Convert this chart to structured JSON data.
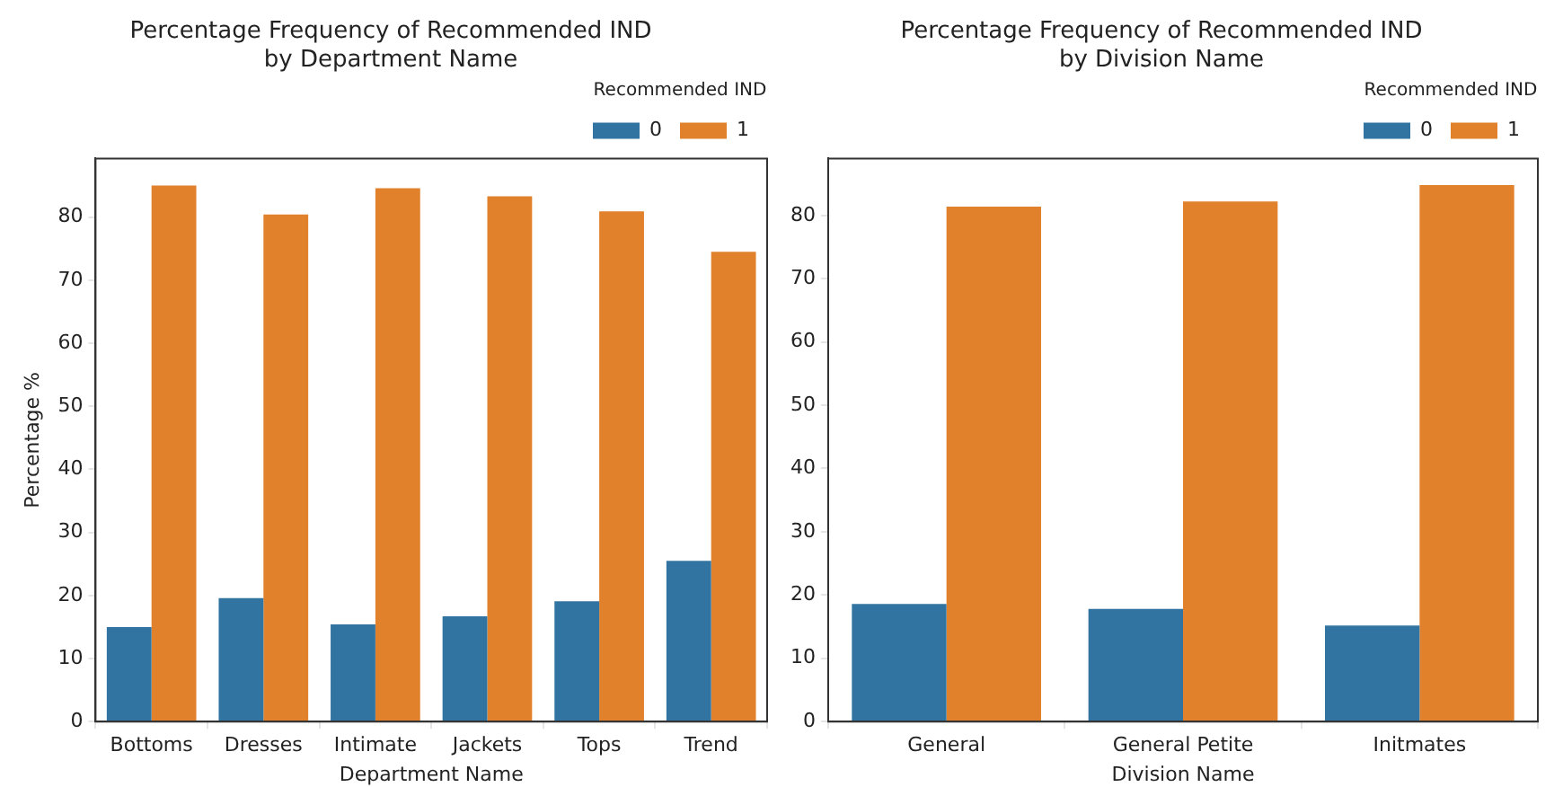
{
  "chart_data": [
    {
      "type": "bar",
      "title": "Percentage Frequency of Recommended IND\nby Department Name",
      "xlabel": "Department Name",
      "ylabel": "Percentage %",
      "legend_title": "Recommended IND",
      "categories": [
        "Bottoms",
        "Dresses",
        "Intimate",
        "Jackets",
        "Tops",
        "Trend"
      ],
      "series": [
        {
          "name": "0",
          "color": "#3274a1",
          "values": [
            15.0,
            19.6,
            15.4,
            16.7,
            19.1,
            25.5
          ]
        },
        {
          "name": "1",
          "color": "#e1812c",
          "values": [
            85.0,
            80.4,
            84.6,
            83.3,
            80.9,
            74.5
          ]
        }
      ],
      "ylim": [
        0,
        89.3
      ],
      "yticks": [
        0,
        10,
        20,
        30,
        40,
        50,
        60,
        70,
        80
      ],
      "grid": false,
      "legend": "top right"
    },
    {
      "type": "bar",
      "title": "Percentage Frequency of Recommended IND\nby Division Name",
      "xlabel": "Division Name",
      "legend_title": "Recommended IND",
      "categories": [
        "General",
        "General Petite",
        "Initmates"
      ],
      "series": [
        {
          "name": "0",
          "color": "#3274a1",
          "values": [
            18.6,
            17.8,
            15.2
          ]
        },
        {
          "name": "1",
          "color": "#e1812c",
          "values": [
            81.4,
            82.2,
            84.8
          ]
        }
      ],
      "ylim": [
        0,
        89.0
      ],
      "yticks": [
        0,
        10,
        20,
        30,
        40,
        50,
        60,
        70,
        80
      ],
      "grid": false,
      "legend": "top right"
    }
  ]
}
